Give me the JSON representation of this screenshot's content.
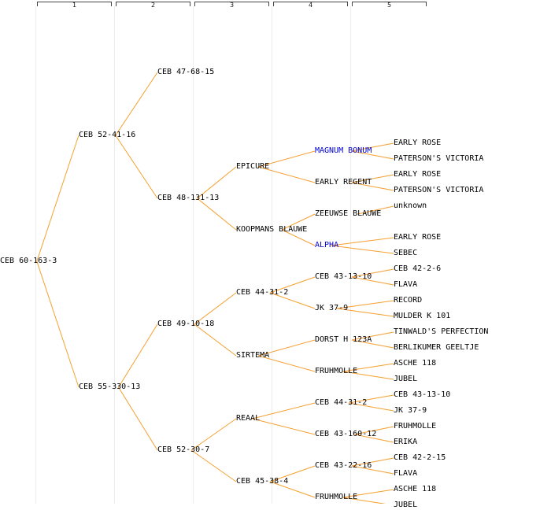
{
  "generation_labels": [
    "1",
    "2",
    "3",
    "4",
    "5"
  ],
  "colors": {
    "edge": "#f5a030",
    "text": "#000000",
    "highlight": "#0000cc",
    "guide": "#ececec"
  },
  "tree": {
    "name": "CEB 60-163-3",
    "children": [
      {
        "name": "CEB 52-41-16",
        "children": [
          {
            "name": "CEB 47-68-15"
          },
          {
            "name": "CEB 48-131-13",
            "children": [
              {
                "name": "EPICURE",
                "children": [
                  {
                    "name": "MAGNUM BONUM",
                    "highlight": true,
                    "children": [
                      {
                        "name": "EARLY ROSE"
                      },
                      {
                        "name": "PATERSON'S VICTORIA"
                      }
                    ]
                  },
                  {
                    "name": "EARLY REGENT",
                    "children": [
                      {
                        "name": "EARLY ROSE"
                      },
                      {
                        "name": "PATERSON'S VICTORIA"
                      }
                    ]
                  }
                ]
              },
              {
                "name": "KOOPMANS BLAUWE",
                "children": [
                  {
                    "name": "ZEEUWSE BLAUWE",
                    "children": [
                      {
                        "name": "unknown"
                      }
                    ]
                  },
                  {
                    "name": "ALPHA",
                    "highlight": true,
                    "children": [
                      {
                        "name": "EARLY ROSE"
                      },
                      {
                        "name": "SEBEC"
                      }
                    ]
                  }
                ]
              }
            ]
          }
        ]
      },
      {
        "name": "CEB 55-330-13",
        "children": [
          {
            "name": "CEB 49-10-18",
            "children": [
              {
                "name": "CEB 44-31-2",
                "children": [
                  {
                    "name": "CEB 43-13-10",
                    "children": [
                      {
                        "name": "CEB 42-2-6"
                      },
                      {
                        "name": "FLAVA"
                      }
                    ]
                  },
                  {
                    "name": "JK 37-9",
                    "children": [
                      {
                        "name": "RECORD"
                      },
                      {
                        "name": "MULDER K 101"
                      }
                    ]
                  }
                ]
              },
              {
                "name": "SIRTEMA",
                "children": [
                  {
                    "name": "DORST H 123A",
                    "children": [
                      {
                        "name": "TINWALD'S PERFECTION"
                      },
                      {
                        "name": "BERLIKUMER GEELTJE"
                      }
                    ]
                  },
                  {
                    "name": "FRUHMOLLE",
                    "children": [
                      {
                        "name": "ASCHE 118"
                      },
                      {
                        "name": "JUBEL"
                      }
                    ]
                  }
                ]
              }
            ]
          },
          {
            "name": "CEB 52-30-7",
            "children": [
              {
                "name": "REAAL",
                "children": [
                  {
                    "name": "CEB 44-31-2",
                    "children": [
                      {
                        "name": "CEB 43-13-10"
                      },
                      {
                        "name": "JK 37-9"
                      }
                    ]
                  },
                  {
                    "name": "CEB 43-160-12",
                    "children": [
                      {
                        "name": "FRUHMOLLE"
                      },
                      {
                        "name": "ERIKA"
                      }
                    ]
                  }
                ]
              },
              {
                "name": "CEB 45-38-4",
                "children": [
                  {
                    "name": "CEB 43-22-16",
                    "children": [
                      {
                        "name": "CEB 42-2-15"
                      },
                      {
                        "name": "FLAVA"
                      }
                    ]
                  },
                  {
                    "name": "FRUHMOLLE",
                    "children": [
                      {
                        "name": "ASCHE 118"
                      },
                      {
                        "name": "JUBEL"
                      }
                    ]
                  }
                ]
              }
            ]
          }
        ]
      }
    ]
  }
}
